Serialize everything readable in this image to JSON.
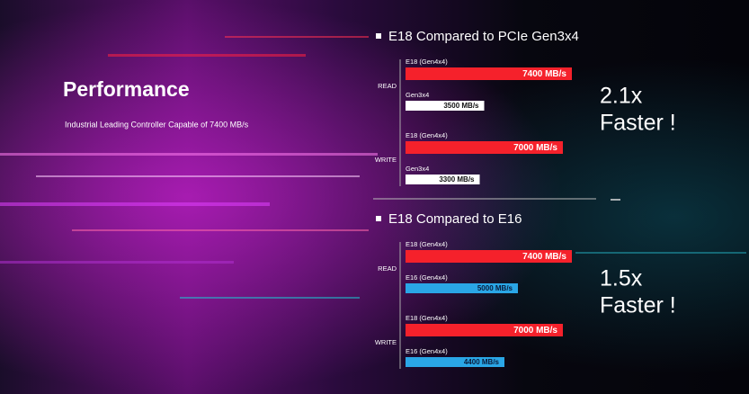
{
  "header": {
    "title": "Performance",
    "subtitle": "Industrial Leading Controller Capable of 7400 MB/s"
  },
  "chart_data": [
    {
      "type": "bar",
      "orientation": "horizontal",
      "title": "E18 Compared to PCIe Gen3x4",
      "categories": [
        "READ",
        "WRITE"
      ],
      "series": [
        {
          "name": "E18 (Gen4x4)",
          "color": "#f5212b",
          "values": [
            7400,
            7000
          ],
          "value_labels": [
            "7400 MB/s",
            "7000 MB/s"
          ]
        },
        {
          "name": "Gen3x4",
          "color": "#ffffff",
          "values": [
            3500,
            3300
          ],
          "value_labels": [
            "3500 MB/s",
            "3300 MB/s"
          ]
        }
      ],
      "annotation": [
        "2.1x",
        "Faster !"
      ]
    },
    {
      "type": "bar",
      "orientation": "horizontal",
      "title": "E18 Compared to E16",
      "categories": [
        "READ",
        "WRITE"
      ],
      "series": [
        {
          "name": "E18 (Gen4x4)",
          "color": "#f5212b",
          "values": [
            7400,
            7000
          ],
          "value_labels": [
            "7400 MB/s",
            "7000 MB/s"
          ]
        },
        {
          "name": "E16 (Gen4x4)",
          "color": "#2aa6e6",
          "values": [
            5000,
            4400
          ],
          "value_labels": [
            "5000 MB/s",
            "4400 MB/s"
          ]
        }
      ],
      "annotation": [
        "1.5x",
        "Faster !"
      ]
    }
  ]
}
